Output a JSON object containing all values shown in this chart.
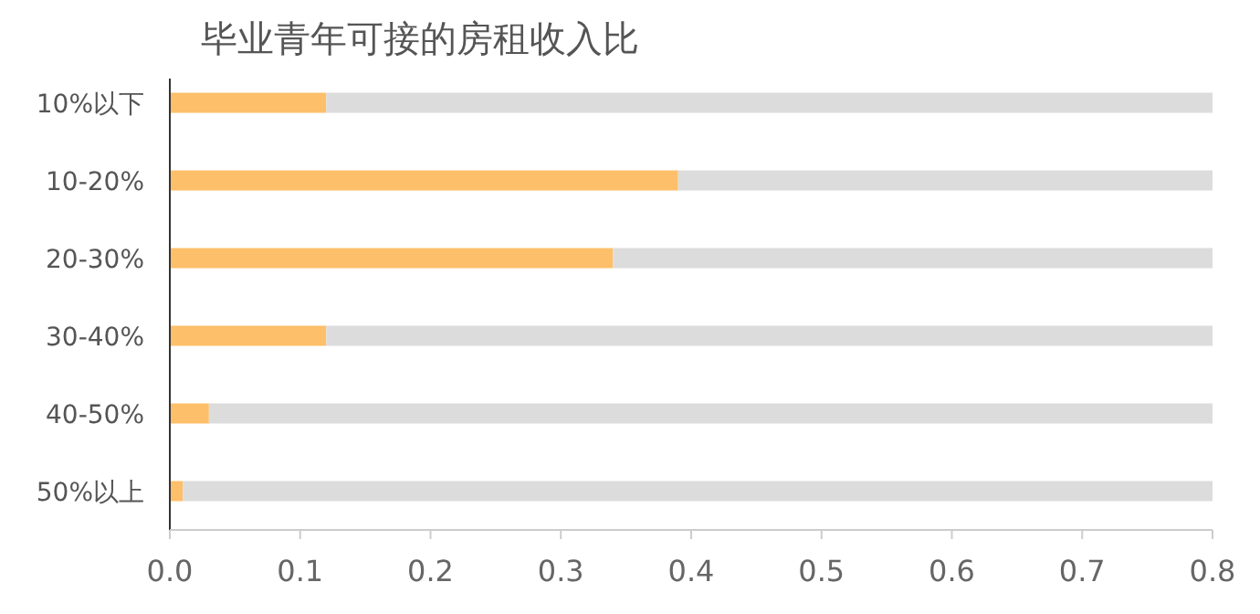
{
  "chart_data": {
    "type": "bar",
    "orientation": "horizontal",
    "stacked": true,
    "title": "毕业青年可接的房租收入比",
    "categories": [
      "10%以下",
      "10-20%",
      "20-30%",
      "30-40%",
      "40-50%",
      "50%以上"
    ],
    "series": [
      {
        "color": "#fdbf6a",
        "values": [
          0.12,
          0.39,
          0.34,
          0.12,
          0.03,
          0.01
        ]
      },
      {
        "color": "#dcdcdc",
        "values": [
          0.68,
          0.41,
          0.46,
          0.68,
          0.77,
          0.79
        ]
      }
    ],
    "xlim": [
      0,
      0.8
    ],
    "xticks": [
      {
        "value": 0,
        "label": "0.0"
      },
      0.1,
      0.2,
      0.3,
      0.4,
      0.5,
      0.6,
      0.7,
      0.8
    ]
  }
}
